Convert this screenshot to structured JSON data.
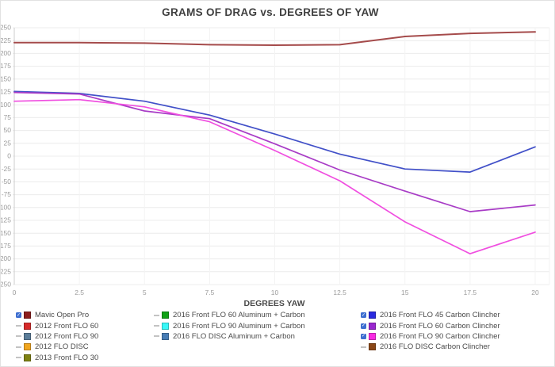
{
  "title": "GRAMS OF DRAG vs. DEGREES OF YAW",
  "chart_data": {
    "type": "line",
    "title": "GRAMS OF DRAG vs. DEGREES OF YAW",
    "xlabel": "DEGREES YAW",
    "ylabel": "",
    "x": [
      0,
      2.5,
      5,
      7.5,
      10,
      12.5,
      15,
      17.5,
      20
    ],
    "x_tick_labels": [
      "0",
      "2.5",
      "5",
      "7.5",
      "10",
      "12.5",
      "15",
      "17.5",
      "20"
    ],
    "ylim": [
      -250,
      250
    ],
    "y_tick_step": 25,
    "y_tick_labels_as_rendered": [
      "250",
      "225",
      "200",
      "175",
      "150",
      "125",
      "100",
      "75",
      "50",
      "25",
      "0",
      "-25",
      "-50",
      "-75",
      "100",
      "125",
      "150",
      "175",
      "200",
      "225",
      "250"
    ],
    "grid": true,
    "legend_position": "bottom",
    "series": [
      {
        "name": "Mavic Open Pro",
        "color": "#A54B4B",
        "values": [
          221,
          221,
          220,
          217,
          216,
          217,
          233,
          239,
          242
        ]
      },
      {
        "name": "2016 Front FLO 45 Carbon Clincher",
        "color": "#4150C8",
        "values": [
          126,
          122,
          107,
          80,
          43,
          4,
          -25,
          -31,
          18
        ]
      },
      {
        "name": "2016 Front FLO 60 Carbon Clincher",
        "color": "#A83CC6",
        "values": [
          124,
          121,
          88,
          73,
          24,
          -27,
          -68,
          -108,
          -95
        ]
      },
      {
        "name": "2016 Front FLO 90 Carbon Clincher",
        "color": "#F04FE0",
        "values": [
          107,
          110,
          96,
          67,
          11,
          -48,
          -128,
          -190,
          -148
        ]
      }
    ]
  },
  "legend": {
    "columns": [
      {
        "items": [
          {
            "label": "Mavic Open Pro",
            "swatch": "#8B1D1D",
            "selected": true
          },
          {
            "label": "2012 Front FLO 60",
            "swatch": "#D62A2A",
            "selected": false
          },
          {
            "label": "2012 Front FLO 90",
            "swatch": "#5B7D99",
            "selected": false
          },
          {
            "label": "2012 FLO DISC",
            "swatch": "#F0A51F",
            "selected": false
          },
          {
            "label": "2013 Front FLO 30",
            "swatch": "#7F8212",
            "selected": false
          }
        ]
      },
      {
        "items": [
          {
            "label": "2016 Front FLO 60 Aluminum + Carbon",
            "swatch": "#0FA215",
            "selected": false
          },
          {
            "label": "2016 Front FLO 90 Aluminum + Carbon",
            "swatch": "#38F8F8",
            "selected": false
          },
          {
            "label": "2016 FLO DISC Aluminum + Carbon",
            "swatch": "#477CB5",
            "selected": false
          }
        ]
      },
      {
        "items": [
          {
            "label": "2016 Front FLO 45 Carbon Clincher",
            "swatch": "#2A2ADF",
            "selected": true
          },
          {
            "label": "2016 Front FLO 60 Carbon Clincher",
            "swatch": "#9A27CF",
            "selected": true
          },
          {
            "label": "2016 Front FLO 90 Carbon Clincher",
            "swatch": "#F82AE2",
            "selected": true
          },
          {
            "label": "2016 FLO DISC Carbon Clincher",
            "swatch": "#8A4616",
            "selected": false
          }
        ]
      }
    ]
  },
  "colors": {
    "checkbox": "#3D6ED0",
    "grid_h": "#ececec",
    "grid_v": "#f3f3f3",
    "axis": "#cccccc",
    "tick_text": "#9b9b9b",
    "x_axis_label": "#4a4a4a"
  }
}
